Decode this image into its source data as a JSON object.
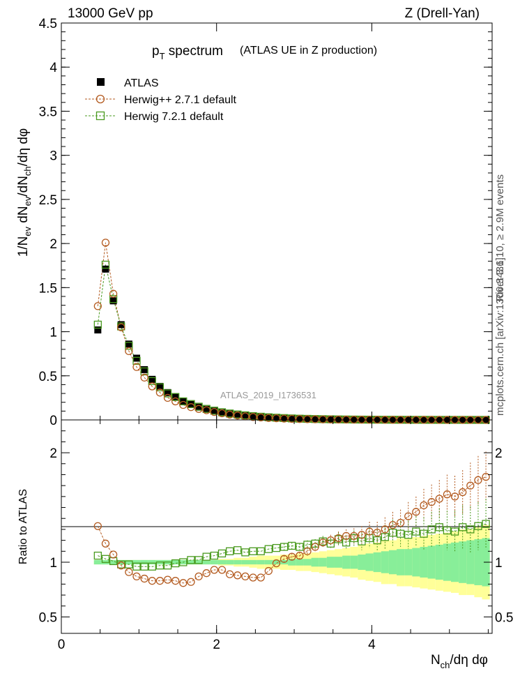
{
  "header": {
    "left": "13000 GeV pp",
    "right": "Z (Drell-Yan)"
  },
  "side_label": {
    "top": "Rivet 3.1.10, ≥ 2.9M events",
    "bottom": "mcplots.cern.ch [arXiv:1306.3436]"
  },
  "watermark": "ATLAS_2019_I1736531",
  "chart_data": [
    {
      "id": "main",
      "type": "scatter",
      "title_main": "p",
      "title_sub": "T",
      "title_rest": " spectrum",
      "title_note": "(ATLAS UE in Z production)",
      "ylabel_text": "1/N",
      "ylabel_parts": [
        "1/N",
        "ev",
        " dN",
        "ev",
        "/dN",
        "ch",
        "/dη dφ"
      ],
      "xlim": [
        0,
        5.55
      ],
      "ylim": [
        0,
        4.5
      ],
      "yticks": [
        0,
        0.5,
        1,
        1.5,
        2,
        2.5,
        3,
        3.5,
        4,
        4.5
      ],
      "ytick_labels": [
        "0",
        "0.5",
        "1",
        "1.5",
        "2",
        "2.5",
        "3",
        "3.5",
        "4",
        "4.5"
      ],
      "x": [
        0.47,
        0.57,
        0.67,
        0.77,
        0.87,
        0.97,
        1.07,
        1.17,
        1.27,
        1.37,
        1.47,
        1.57,
        1.67,
        1.77,
        1.87,
        1.97,
        2.07,
        2.17,
        2.27,
        2.37,
        2.47,
        2.57,
        2.67,
        2.77,
        2.87,
        2.97,
        3.07,
        3.17,
        3.27,
        3.37,
        3.47,
        3.57,
        3.67,
        3.77,
        3.87,
        3.97,
        4.07,
        4.17,
        4.27,
        4.37,
        4.47,
        4.57,
        4.67,
        4.77,
        4.87,
        4.97,
        5.07,
        5.17,
        5.27,
        5.37,
        5.47
      ],
      "series": [
        {
          "name": "ATLAS",
          "marker": "filled-square",
          "color": "#000000",
          "values": [
            1.02,
            1.71,
            1.35,
            1.08,
            0.86,
            0.7,
            0.57,
            0.46,
            0.38,
            0.31,
            0.26,
            0.21,
            0.175,
            0.145,
            0.12,
            0.1,
            0.082,
            0.068,
            0.057,
            0.047,
            0.039,
            0.033,
            0.027,
            0.023,
            0.019,
            0.016,
            0.013,
            0.011,
            0.0095,
            0.008,
            0.0067,
            0.0056,
            0.0047,
            0.0039,
            0.0033,
            0.0028,
            0.0023,
            0.0019,
            0.0016,
            0.0014,
            0.0012,
            0.001,
            0.00085,
            0.0007,
            0.0006,
            0.0005,
            0.00042,
            0.00035,
            0.0003,
            0.00025,
            0.0002
          ]
        },
        {
          "name": "Herwig++ 2.7.1 default",
          "marker": "open-circle",
          "color": "#b35a1f",
          "values": [
            1.29,
            2.01,
            1.43,
            1.05,
            0.78,
            0.6,
            0.48,
            0.38,
            0.31,
            0.25,
            0.21,
            0.17,
            0.145,
            0.125,
            0.11,
            0.09,
            0.075,
            0.06,
            0.05,
            0.04,
            0.033,
            0.028,
            0.022,
            0.019,
            0.015,
            0.012,
            0.01,
            0.0085,
            0.007,
            0.006,
            0.005,
            0.004,
            0.0035,
            0.003,
            0.0025,
            0.002,
            0.0018,
            0.0015,
            0.0012,
            0.001,
            0.0008,
            0.0007,
            0.0006,
            0.0005,
            0.0004,
            0.0003,
            0.0003,
            0.0002,
            0.0002,
            0.0002,
            0.0001
          ]
        },
        {
          "name": "Herwig 7.2.1 default",
          "marker": "open-square",
          "color": "#4a9a1f",
          "values": [
            1.08,
            1.76,
            1.37,
            1.06,
            0.84,
            0.67,
            0.55,
            0.44,
            0.37,
            0.3,
            0.26,
            0.21,
            0.18,
            0.15,
            0.125,
            0.105,
            0.087,
            0.073,
            0.062,
            0.052,
            0.043,
            0.036,
            0.03,
            0.025,
            0.021,
            0.017,
            0.014,
            0.012,
            0.01,
            0.0085,
            0.007,
            0.006,
            0.005,
            0.0042,
            0.0035,
            0.003,
            0.0025,
            0.002,
            0.0018,
            0.0015,
            0.0012,
            0.001,
            0.0009,
            0.0007,
            0.0006,
            0.0005,
            0.0004,
            0.0003,
            0.0003,
            0.0002,
            0.0002
          ]
        }
      ]
    },
    {
      "id": "ratio",
      "type": "scatter",
      "ylabel": "Ratio to ATLAS",
      "xlabel_parts": [
        "N",
        "ch",
        "/dη dφ"
      ],
      "xlim": [
        0,
        5.55
      ],
      "ylim": [
        0.35,
        2.3
      ],
      "yticks": [
        0.5,
        1,
        2
      ],
      "ytick_labels": [
        "0.5",
        "1",
        "2"
      ],
      "xticks": [
        0,
        2,
        4
      ],
      "xtick_labels": [
        "0",
        "2",
        "4"
      ],
      "band_yellow_half": [
        0.02,
        0.02,
        0.02,
        0.02,
        0.02,
        0.02,
        0.02,
        0.02,
        0.02,
        0.02,
        0.02,
        0.02,
        0.02,
        0.02,
        0.02,
        0.02,
        0.03,
        0.03,
        0.04,
        0.04,
        0.05,
        0.06,
        0.06,
        0.06,
        0.07,
        0.07,
        0.08,
        0.08,
        0.09,
        0.1,
        0.11,
        0.12,
        0.13,
        0.14,
        0.16,
        0.17,
        0.18,
        0.2,
        0.2,
        0.22,
        0.22,
        0.23,
        0.24,
        0.25,
        0.26,
        0.27,
        0.28,
        0.3,
        0.3,
        0.32,
        0.34
      ],
      "band_green_half": [
        0.02,
        0.02,
        0.02,
        0.02,
        0.02,
        0.02,
        0.02,
        0.02,
        0.02,
        0.02,
        0.02,
        0.02,
        0.02,
        0.02,
        0.02,
        0.02,
        0.02,
        0.02,
        0.02,
        0.02,
        0.02,
        0.02,
        0.02,
        0.02,
        0.02,
        0.03,
        0.03,
        0.03,
        0.04,
        0.04,
        0.05,
        0.05,
        0.06,
        0.06,
        0.07,
        0.08,
        0.09,
        0.1,
        0.11,
        0.12,
        0.12,
        0.13,
        0.14,
        0.15,
        0.16,
        0.17,
        0.18,
        0.19,
        0.2,
        0.21,
        0.22
      ],
      "series": [
        {
          "name": "Herwig++ 2.7.1 default",
          "color": "#b35a1f",
          "values": [
            1.33,
            1.17,
            1.07,
            0.97,
            0.91,
            0.87,
            0.85,
            0.83,
            0.83,
            0.84,
            0.83,
            0.81,
            0.82,
            0.87,
            0.9,
            0.93,
            0.93,
            0.89,
            0.88,
            0.87,
            0.86,
            0.86,
            0.92,
            0.99,
            1.03,
            1.05,
            1.06,
            1.1,
            1.14,
            1.18,
            1.2,
            1.22,
            1.24,
            1.24,
            1.25,
            1.28,
            1.27,
            1.3,
            1.34,
            1.36,
            1.42,
            1.46,
            1.52,
            1.55,
            1.58,
            1.62,
            1.6,
            1.64,
            1.7,
            1.75,
            1.78
          ],
          "err": [
            0.02,
            0.02,
            0.02,
            0.02,
            0.02,
            0.02,
            0.02,
            0.02,
            0.02,
            0.02,
            0.02,
            0.02,
            0.02,
            0.02,
            0.02,
            0.02,
            0.02,
            0.02,
            0.02,
            0.02,
            0.02,
            0.02,
            0.02,
            0.02,
            0.03,
            0.03,
            0.03,
            0.04,
            0.04,
            0.05,
            0.05,
            0.06,
            0.06,
            0.07,
            0.08,
            0.09,
            0.1,
            0.11,
            0.12,
            0.12,
            0.13,
            0.14,
            0.15,
            0.16,
            0.17,
            0.18,
            0.19,
            0.2,
            0.21,
            0.22,
            0.23
          ]
        },
        {
          "name": "Herwig 7.2.1 default",
          "color": "#4a9a1f",
          "values": [
            1.06,
            1.03,
            1.01,
            0.98,
            0.98,
            0.96,
            0.96,
            0.96,
            0.97,
            0.97,
            0.99,
            1.0,
            1.02,
            1.02,
            1.05,
            1.06,
            1.08,
            1.1,
            1.11,
            1.09,
            1.1,
            1.1,
            1.12,
            1.13,
            1.14,
            1.15,
            1.14,
            1.16,
            1.17,
            1.19,
            1.17,
            1.21,
            1.18,
            1.22,
            1.19,
            1.22,
            1.2,
            1.23,
            1.27,
            1.26,
            1.25,
            1.28,
            1.26,
            1.3,
            1.32,
            1.29,
            1.28,
            1.32,
            1.3,
            1.33,
            1.35
          ],
          "err": [
            0.02,
            0.02,
            0.02,
            0.02,
            0.02,
            0.02,
            0.02,
            0.02,
            0.02,
            0.02,
            0.02,
            0.02,
            0.02,
            0.02,
            0.02,
            0.02,
            0.02,
            0.02,
            0.02,
            0.02,
            0.02,
            0.02,
            0.02,
            0.02,
            0.03,
            0.03,
            0.03,
            0.04,
            0.04,
            0.05,
            0.05,
            0.06,
            0.06,
            0.07,
            0.08,
            0.09,
            0.1,
            0.11,
            0.12,
            0.12,
            0.13,
            0.14,
            0.15,
            0.16,
            0.17,
            0.18,
            0.19,
            0.2,
            0.21,
            0.22,
            0.23
          ]
        }
      ]
    }
  ]
}
